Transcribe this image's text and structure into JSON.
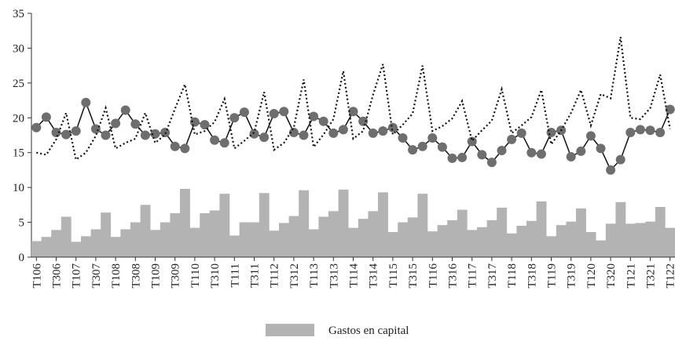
{
  "chart_data": {
    "type": "bar",
    "categories": [
      "T106",
      null,
      "T306",
      null,
      "T107",
      null,
      "T307",
      null,
      "T108",
      null,
      "T308",
      null,
      "T109",
      null,
      "T309",
      null,
      "T110",
      null,
      "T310",
      null,
      "T111",
      null,
      "T311",
      null,
      "T112",
      null,
      "T312",
      null,
      "T113",
      null,
      "T313",
      null,
      "T114",
      null,
      "T314",
      null,
      "T115",
      null,
      "T315",
      null,
      "T116",
      null,
      "T316",
      null,
      "T117",
      null,
      "T317",
      null,
      "T118",
      null,
      "T318",
      null,
      "T119",
      null,
      "T319",
      null,
      "T120",
      null,
      "T320",
      null,
      "T121",
      null,
      "T321",
      null,
      "T122"
    ],
    "series": [
      {
        "name": "Gastos en capital",
        "type": "bar",
        "color": "#b3b3b3",
        "values": [
          2.3,
          2.9,
          3.9,
          5.8,
          2.2,
          3.0,
          4.0,
          6.4,
          2.9,
          4.0,
          5.0,
          7.5,
          3.9,
          5.0,
          6.3,
          9.8,
          4.2,
          6.3,
          6.7,
          9.1,
          3.1,
          5.0,
          5.0,
          9.2,
          3.8,
          4.9,
          5.9,
          9.6,
          4.0,
          5.8,
          6.6,
          9.7,
          4.2,
          5.5,
          6.6,
          9.3,
          3.6,
          5.0,
          5.7,
          9.1,
          3.7,
          4.6,
          5.3,
          6.8,
          3.9,
          4.3,
          5.3,
          7.1,
          3.4,
          4.5,
          5.2,
          8.0,
          3.0,
          4.6,
          5.1,
          7.0,
          3.6,
          2.4,
          4.8,
          7.9,
          4.8,
          4.9,
          5.1,
          7.2,
          4.2
        ]
      },
      {
        "type": "line",
        "marker": "circle",
        "color": "#6e6e6e",
        "values": [
          18.6,
          20.1,
          17.9,
          17.6,
          18.1,
          22.2,
          18.4,
          17.5,
          19.2,
          21.1,
          19.1,
          17.5,
          17.7,
          17.9,
          15.9,
          15.6,
          19.4,
          19.0,
          16.8,
          16.4,
          20.0,
          20.8,
          17.7,
          17.2,
          20.6,
          20.9,
          17.9,
          17.5,
          20.2,
          19.5,
          17.8,
          18.3,
          20.9,
          19.5,
          17.8,
          18.1,
          18.6,
          17.1,
          15.4,
          15.9,
          17.1,
          15.8,
          14.2,
          14.3,
          16.6,
          14.7,
          13.6,
          15.3,
          16.9,
          17.8,
          15.0,
          14.8,
          17.9,
          18.2,
          14.4,
          15.2,
          17.4,
          15.6,
          12.5,
          14.0,
          17.9,
          18.3,
          18.2,
          17.9,
          21.2
        ]
      },
      {
        "type": "line",
        "dash": "dotted",
        "color": "#111111",
        "values": [
          15.0,
          14.7,
          16.9,
          20.7,
          14.0,
          15.0,
          17.4,
          21.4,
          15.6,
          16.4,
          17.0,
          20.7,
          16.4,
          17.6,
          21.3,
          24.8,
          17.6,
          18.1,
          19.4,
          22.7,
          15.6,
          16.7,
          17.9,
          23.7,
          15.4,
          16.4,
          18.6,
          25.5,
          15.8,
          17.6,
          19.8,
          26.7,
          17.0,
          18.1,
          23.3,
          27.7,
          17.6,
          19.0,
          20.6,
          27.5,
          18.1,
          18.8,
          19.9,
          22.4,
          16.7,
          18.2,
          19.6,
          24.1,
          17.8,
          18.9,
          20.1,
          24.0,
          16.2,
          18.2,
          20.7,
          24.0,
          18.9,
          23.4,
          22.8,
          31.6,
          20.0,
          19.8,
          21.4,
          26.2,
          18.4
        ]
      }
    ],
    "ylim": [
      0,
      35
    ],
    "yticks": [
      0,
      5,
      10,
      15,
      20,
      25,
      30,
      35
    ]
  }
}
